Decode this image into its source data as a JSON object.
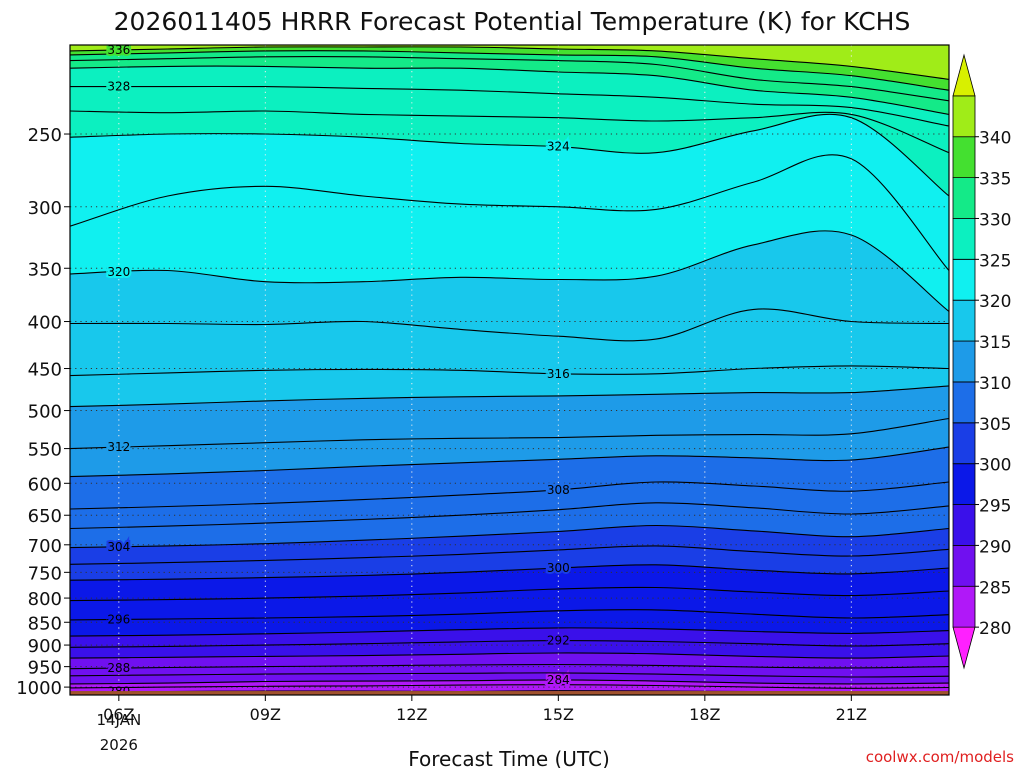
{
  "chart_data": {
    "type": "heatmap",
    "title": "2026011405 HRRR Forecast Potential Temperature (K) for KCHS",
    "xlabel": "Forecast Time (UTC)",
    "ylabel": "",
    "credit": "coolwx.com/models",
    "x_ticks": [
      {
        "label": "06Z",
        "hour": 6
      },
      {
        "label": "09Z",
        "hour": 9
      },
      {
        "label": "12Z",
        "hour": 12
      },
      {
        "label": "15Z",
        "hour": 15
      },
      {
        "label": "18Z",
        "hour": 18
      },
      {
        "label": "21Z",
        "hour": 21
      }
    ],
    "x_date_line1": "14JAN",
    "x_date_line2": "2026",
    "xlim": [
      5,
      23
    ],
    "y_ticks": [
      250,
      300,
      350,
      400,
      450,
      500,
      550,
      600,
      650,
      700,
      750,
      800,
      850,
      900,
      950,
      1000
    ],
    "y_tick_labels": [
      "250",
      "300",
      "350",
      "400",
      "450",
      "500",
      "550",
      "600",
      "650",
      "700",
      "750",
      "800",
      "850",
      "900",
      "950",
      "1000"
    ],
    "ylim_hPa": [
      200,
      1020
    ],
    "y_scale": "log-pressure",
    "grid": true,
    "colorbar": {
      "placement": "right",
      "levels": [
        280,
        285,
        290,
        295,
        300,
        305,
        310,
        315,
        320,
        325,
        330,
        335,
        340
      ],
      "labels": [
        "280",
        "285",
        "290",
        "295",
        "300",
        "305",
        "310",
        "315",
        "320",
        "325",
        "330",
        "335",
        "340"
      ],
      "colors": [
        "#ff20ff",
        "#b018f8",
        "#7010f0",
        "#3a10ea",
        "#0b18e8",
        "#1a3ee6",
        "#1d6ee8",
        "#1e9be8",
        "#18c8ec",
        "#10f0f0",
        "#0cf0c0",
        "#14ea88",
        "#44e030",
        "#a0ec18",
        "#d8f000"
      ]
    },
    "ground_color": "#a0522d",
    "contour_interval": 2,
    "contours": [
      {
        "theta": 280,
        "label": "280",
        "p": [
          1012,
          1011,
          1010,
          1010,
          1011,
          1009,
          1010,
          1011,
          1012,
          1012
        ]
      },
      {
        "theta": 282,
        "p": [
          1002,
          1000,
          998,
          997,
          995,
          994,
          996,
          1000,
          1003,
          1001
        ]
      },
      {
        "theta": 284,
        "label": "284",
        "p": [
          992,
          990,
          986,
          985,
          984,
          982,
          985,
          990,
          992,
          990
        ]
      },
      {
        "theta": 286,
        "p": [
          972,
          970,
          968,
          967,
          966,
          965,
          968,
          972,
          975,
          973
        ]
      },
      {
        "theta": 288,
        "label": "288",
        "p": [
          955,
          952,
          950,
          948,
          946,
          945,
          947,
          951,
          953,
          950
        ]
      },
      {
        "theta": 290,
        "p": [
          930,
          928,
          926,
          924,
          921,
          918,
          920,
          926,
          930,
          925
        ]
      },
      {
        "theta": 292,
        "label": "292",
        "p": [
          905,
          903,
          900,
          897,
          893,
          890,
          892,
          897,
          902,
          897
        ]
      },
      {
        "theta": 294,
        "p": [
          880,
          878,
          875,
          871,
          866,
          862,
          864,
          870,
          874,
          868
        ]
      },
      {
        "theta": 296,
        "label": "296",
        "p": [
          845,
          843,
          841,
          838,
          833,
          826,
          824,
          833,
          841,
          834
        ]
      },
      {
        "theta": 298,
        "p": [
          805,
          803,
          800,
          796,
          790,
          782,
          779,
          788,
          795,
          786
        ]
      },
      {
        "theta": 300,
        "label": "300",
        "p": [
          765,
          763,
          760,
          756,
          750,
          742,
          736,
          746,
          753,
          742
        ]
      },
      {
        "theta": 302,
        "p": [
          735,
          732,
          728,
          723,
          717,
          709,
          702,
          712,
          720,
          708
        ]
      },
      {
        "theta": 304,
        "label": "304",
        "p": [
          705,
          702,
          698,
          692,
          685,
          677,
          667,
          676,
          686,
          672
        ]
      },
      {
        "theta": 306,
        "p": [
          672,
          668,
          663,
          657,
          650,
          641,
          630,
          638,
          648,
          635
        ]
      },
      {
        "theta": 308,
        "label": "308",
        "p": [
          640,
          636,
          631,
          625,
          618,
          610,
          598,
          604,
          612,
          598
        ]
      },
      {
        "theta": 310,
        "p": [
          590,
          586,
          581,
          575,
          570,
          565,
          560,
          563,
          566,
          548
        ]
      },
      {
        "theta": 312,
        "label": "312",
        "p": [
          550,
          546,
          542,
          538,
          536,
          535,
          532,
          531,
          530,
          510
        ]
      },
      {
        "theta": 314,
        "p": [
          495,
          492,
          488,
          485,
          483,
          482,
          480,
          478,
          478,
          470
        ]
      },
      {
        "theta": 316,
        "label": "316",
        "p": [
          458,
          455,
          452,
          451,
          452,
          456,
          456,
          450,
          447,
          450
        ]
      },
      {
        "theta": 318,
        "p": [
          402,
          402,
          403,
          400,
          408,
          415,
          418,
          388,
          400,
          402
        ]
      },
      {
        "theta": 320,
        "label": "320",
        "p": [
          355,
          352,
          362,
          362,
          358,
          360,
          357,
          330,
          322,
          390
        ]
      },
      {
        "theta": 322,
        "p": [
          315,
          292,
          285,
          292,
          298,
          300,
          302,
          282,
          266,
          352
        ]
      },
      {
        "theta": 324,
        "label": "324",
        "p": [
          252,
          250,
          250,
          252,
          256,
          258,
          262,
          248,
          240,
          292
        ]
      },
      {
        "theta": 326,
        "p": [
          236,
          237,
          236,
          238,
          239,
          240,
          242,
          240,
          238,
          262
        ]
      },
      {
        "theta": 328,
        "label": "328",
        "p": [
          222,
          222,
          222,
          223,
          224,
          226,
          228,
          232,
          234,
          245
        ]
      },
      {
        "theta": 330,
        "p": [
          212,
          211,
          211,
          212,
          212,
          214,
          216,
          224,
          228,
          238
        ]
      },
      {
        "theta": 332,
        "p": [
          208,
          207,
          206,
          206,
          207,
          208,
          210,
          218,
          222,
          230
        ]
      },
      {
        "theta": 334,
        "p": [
          205,
          204,
          203,
          203,
          204,
          205,
          206,
          212,
          216,
          224
        ]
      },
      {
        "theta": 336,
        "label": "336",
        "p": [
          203,
          202,
          201,
          201,
          201,
          202,
          203,
          207,
          211,
          218
        ]
      }
    ],
    "contour_hours": [
      5,
      7,
      9,
      11,
      13,
      15,
      17,
      19,
      21,
      23
    ]
  }
}
